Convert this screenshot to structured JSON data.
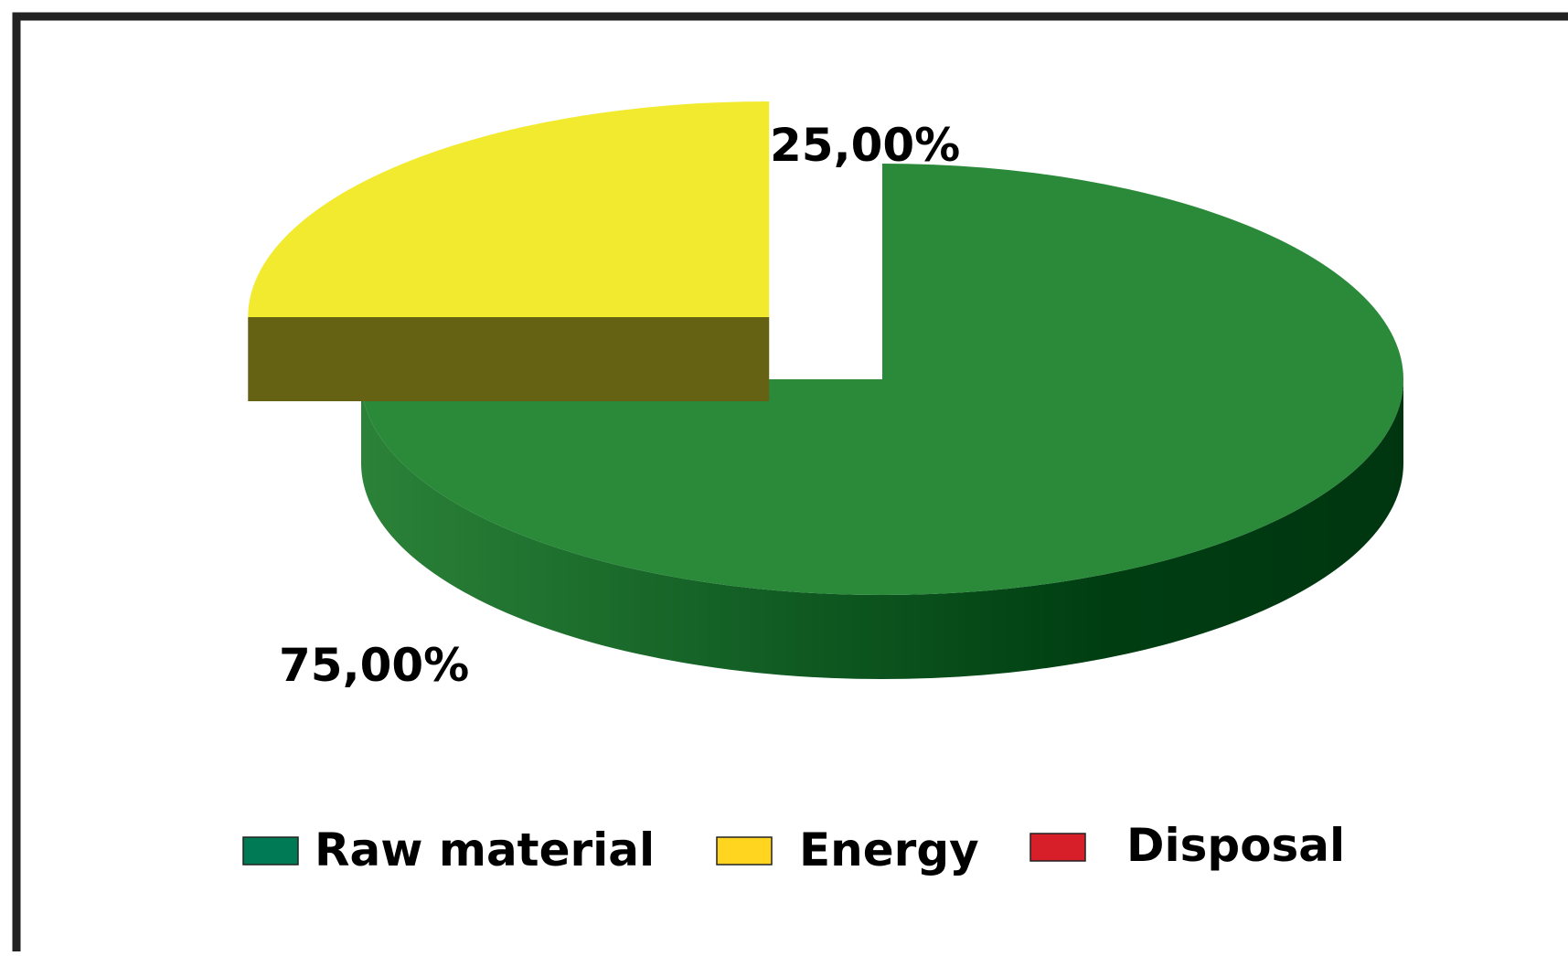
{
  "chart_data": {
    "type": "pie",
    "style": "3d-exploded",
    "categories": [
      "Raw material",
      "Energy",
      "Disposal"
    ],
    "values": [
      75.0,
      25.0,
      0.0
    ],
    "data_labels": [
      "75,00%",
      "25,00%",
      ""
    ],
    "colors": {
      "Raw material": "#2a8a3a",
      "Energy": "#f2ea2e",
      "Disposal": "#d71f2a"
    },
    "legend": {
      "placement": "bottom",
      "items": [
        {
          "label": "Raw material",
          "color": "#007a55"
        },
        {
          "label": "Energy",
          "color": "#ffd51f"
        },
        {
          "label": "Disposal",
          "color": "#d71f2a"
        }
      ]
    }
  }
}
